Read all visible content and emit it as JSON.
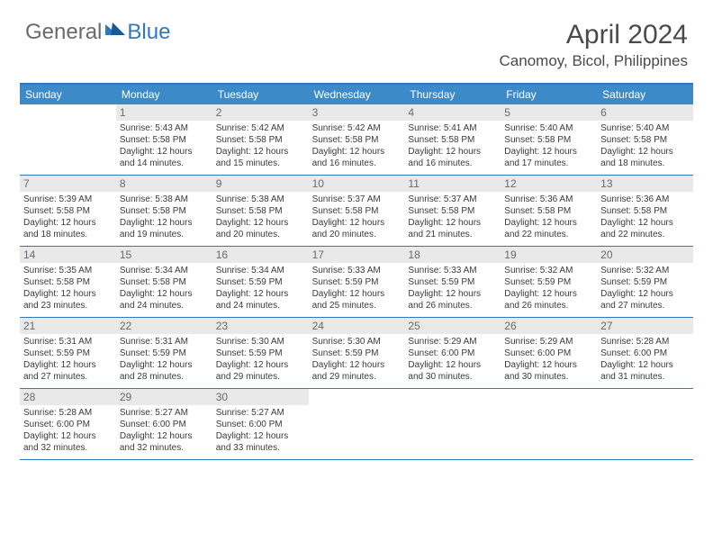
{
  "logo": {
    "general": "General",
    "blue": "Blue"
  },
  "title": "April 2024",
  "location": "Canomoy, Bicol, Philippines",
  "colors": {
    "header_bg": "#3d8ac9",
    "rule": "#2e7ac0",
    "daynum_bg": "#e9e9e9",
    "text": "#3a3a3a",
    "title_text": "#4a4a4a"
  },
  "dow": [
    "Sunday",
    "Monday",
    "Tuesday",
    "Wednesday",
    "Thursday",
    "Friday",
    "Saturday"
  ],
  "weeks": [
    [
      {
        "n": "",
        "sr": "",
        "ss": "",
        "dl": ""
      },
      {
        "n": "1",
        "sr": "Sunrise: 5:43 AM",
        "ss": "Sunset: 5:58 PM",
        "dl": "Daylight: 12 hours and 14 minutes."
      },
      {
        "n": "2",
        "sr": "Sunrise: 5:42 AM",
        "ss": "Sunset: 5:58 PM",
        "dl": "Daylight: 12 hours and 15 minutes."
      },
      {
        "n": "3",
        "sr": "Sunrise: 5:42 AM",
        "ss": "Sunset: 5:58 PM",
        "dl": "Daylight: 12 hours and 16 minutes."
      },
      {
        "n": "4",
        "sr": "Sunrise: 5:41 AM",
        "ss": "Sunset: 5:58 PM",
        "dl": "Daylight: 12 hours and 16 minutes."
      },
      {
        "n": "5",
        "sr": "Sunrise: 5:40 AM",
        "ss": "Sunset: 5:58 PM",
        "dl": "Daylight: 12 hours and 17 minutes."
      },
      {
        "n": "6",
        "sr": "Sunrise: 5:40 AM",
        "ss": "Sunset: 5:58 PM",
        "dl": "Daylight: 12 hours and 18 minutes."
      }
    ],
    [
      {
        "n": "7",
        "sr": "Sunrise: 5:39 AM",
        "ss": "Sunset: 5:58 PM",
        "dl": "Daylight: 12 hours and 18 minutes."
      },
      {
        "n": "8",
        "sr": "Sunrise: 5:38 AM",
        "ss": "Sunset: 5:58 PM",
        "dl": "Daylight: 12 hours and 19 minutes."
      },
      {
        "n": "9",
        "sr": "Sunrise: 5:38 AM",
        "ss": "Sunset: 5:58 PM",
        "dl": "Daylight: 12 hours and 20 minutes."
      },
      {
        "n": "10",
        "sr": "Sunrise: 5:37 AM",
        "ss": "Sunset: 5:58 PM",
        "dl": "Daylight: 12 hours and 20 minutes."
      },
      {
        "n": "11",
        "sr": "Sunrise: 5:37 AM",
        "ss": "Sunset: 5:58 PM",
        "dl": "Daylight: 12 hours and 21 minutes."
      },
      {
        "n": "12",
        "sr": "Sunrise: 5:36 AM",
        "ss": "Sunset: 5:58 PM",
        "dl": "Daylight: 12 hours and 22 minutes."
      },
      {
        "n": "13",
        "sr": "Sunrise: 5:36 AM",
        "ss": "Sunset: 5:58 PM",
        "dl": "Daylight: 12 hours and 22 minutes."
      }
    ],
    [
      {
        "n": "14",
        "sr": "Sunrise: 5:35 AM",
        "ss": "Sunset: 5:58 PM",
        "dl": "Daylight: 12 hours and 23 minutes."
      },
      {
        "n": "15",
        "sr": "Sunrise: 5:34 AM",
        "ss": "Sunset: 5:58 PM",
        "dl": "Daylight: 12 hours and 24 minutes."
      },
      {
        "n": "16",
        "sr": "Sunrise: 5:34 AM",
        "ss": "Sunset: 5:59 PM",
        "dl": "Daylight: 12 hours and 24 minutes."
      },
      {
        "n": "17",
        "sr": "Sunrise: 5:33 AM",
        "ss": "Sunset: 5:59 PM",
        "dl": "Daylight: 12 hours and 25 minutes."
      },
      {
        "n": "18",
        "sr": "Sunrise: 5:33 AM",
        "ss": "Sunset: 5:59 PM",
        "dl": "Daylight: 12 hours and 26 minutes."
      },
      {
        "n": "19",
        "sr": "Sunrise: 5:32 AM",
        "ss": "Sunset: 5:59 PM",
        "dl": "Daylight: 12 hours and 26 minutes."
      },
      {
        "n": "20",
        "sr": "Sunrise: 5:32 AM",
        "ss": "Sunset: 5:59 PM",
        "dl": "Daylight: 12 hours and 27 minutes."
      }
    ],
    [
      {
        "n": "21",
        "sr": "Sunrise: 5:31 AM",
        "ss": "Sunset: 5:59 PM",
        "dl": "Daylight: 12 hours and 27 minutes."
      },
      {
        "n": "22",
        "sr": "Sunrise: 5:31 AM",
        "ss": "Sunset: 5:59 PM",
        "dl": "Daylight: 12 hours and 28 minutes."
      },
      {
        "n": "23",
        "sr": "Sunrise: 5:30 AM",
        "ss": "Sunset: 5:59 PM",
        "dl": "Daylight: 12 hours and 29 minutes."
      },
      {
        "n": "24",
        "sr": "Sunrise: 5:30 AM",
        "ss": "Sunset: 5:59 PM",
        "dl": "Daylight: 12 hours and 29 minutes."
      },
      {
        "n": "25",
        "sr": "Sunrise: 5:29 AM",
        "ss": "Sunset: 6:00 PM",
        "dl": "Daylight: 12 hours and 30 minutes."
      },
      {
        "n": "26",
        "sr": "Sunrise: 5:29 AM",
        "ss": "Sunset: 6:00 PM",
        "dl": "Daylight: 12 hours and 30 minutes."
      },
      {
        "n": "27",
        "sr": "Sunrise: 5:28 AM",
        "ss": "Sunset: 6:00 PM",
        "dl": "Daylight: 12 hours and 31 minutes."
      }
    ],
    [
      {
        "n": "28",
        "sr": "Sunrise: 5:28 AM",
        "ss": "Sunset: 6:00 PM",
        "dl": "Daylight: 12 hours and 32 minutes."
      },
      {
        "n": "29",
        "sr": "Sunrise: 5:27 AM",
        "ss": "Sunset: 6:00 PM",
        "dl": "Daylight: 12 hours and 32 minutes."
      },
      {
        "n": "30",
        "sr": "Sunrise: 5:27 AM",
        "ss": "Sunset: 6:00 PM",
        "dl": "Daylight: 12 hours and 33 minutes."
      },
      {
        "n": "",
        "sr": "",
        "ss": "",
        "dl": ""
      },
      {
        "n": "",
        "sr": "",
        "ss": "",
        "dl": ""
      },
      {
        "n": "",
        "sr": "",
        "ss": "",
        "dl": ""
      },
      {
        "n": "",
        "sr": "",
        "ss": "",
        "dl": ""
      }
    ]
  ]
}
